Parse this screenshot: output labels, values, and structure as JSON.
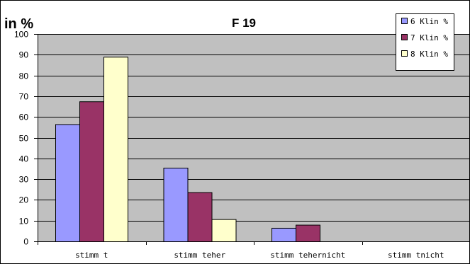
{
  "chart_data": {
    "type": "bar",
    "title": "F 19",
    "unit_label": "in %",
    "xlabel": "",
    "ylabel": "",
    "categories": [
      "stimmt",
      "stimmteher",
      "stimmtehernicht",
      "stimmtnicht"
    ],
    "category_labels": [
      "stimm t",
      "stimm teher",
      "stimm tehernicht",
      "stimm tnicht"
    ],
    "ylim": [
      0,
      100
    ],
    "y_ticks": [
      0,
      10,
      20,
      30,
      40,
      50,
      60,
      70,
      80,
      90,
      100
    ],
    "y_tick_labels": [
      "0",
      "10",
      "20",
      "30",
      "40",
      "50",
      "60",
      "70",
      "80",
      "90",
      "100"
    ],
    "grid": true,
    "legend_position": "top-right",
    "series": [
      {
        "name": "6 Klin %",
        "color": "#9999ff",
        "values": [
          56.5,
          35.5,
          6.5,
          0
        ]
      },
      {
        "name": "7 Klin %",
        "color": "#993366",
        "values": [
          67.5,
          23.7,
          8.0,
          0
        ]
      },
      {
        "name": "8 Klin %",
        "color": "#ffffcc",
        "values": [
          89.0,
          10.7,
          0,
          0
        ]
      }
    ],
    "colors": {
      "plot_background": "#c0c0c0",
      "gridline": "#000000",
      "bar_outline": "#000000"
    }
  }
}
